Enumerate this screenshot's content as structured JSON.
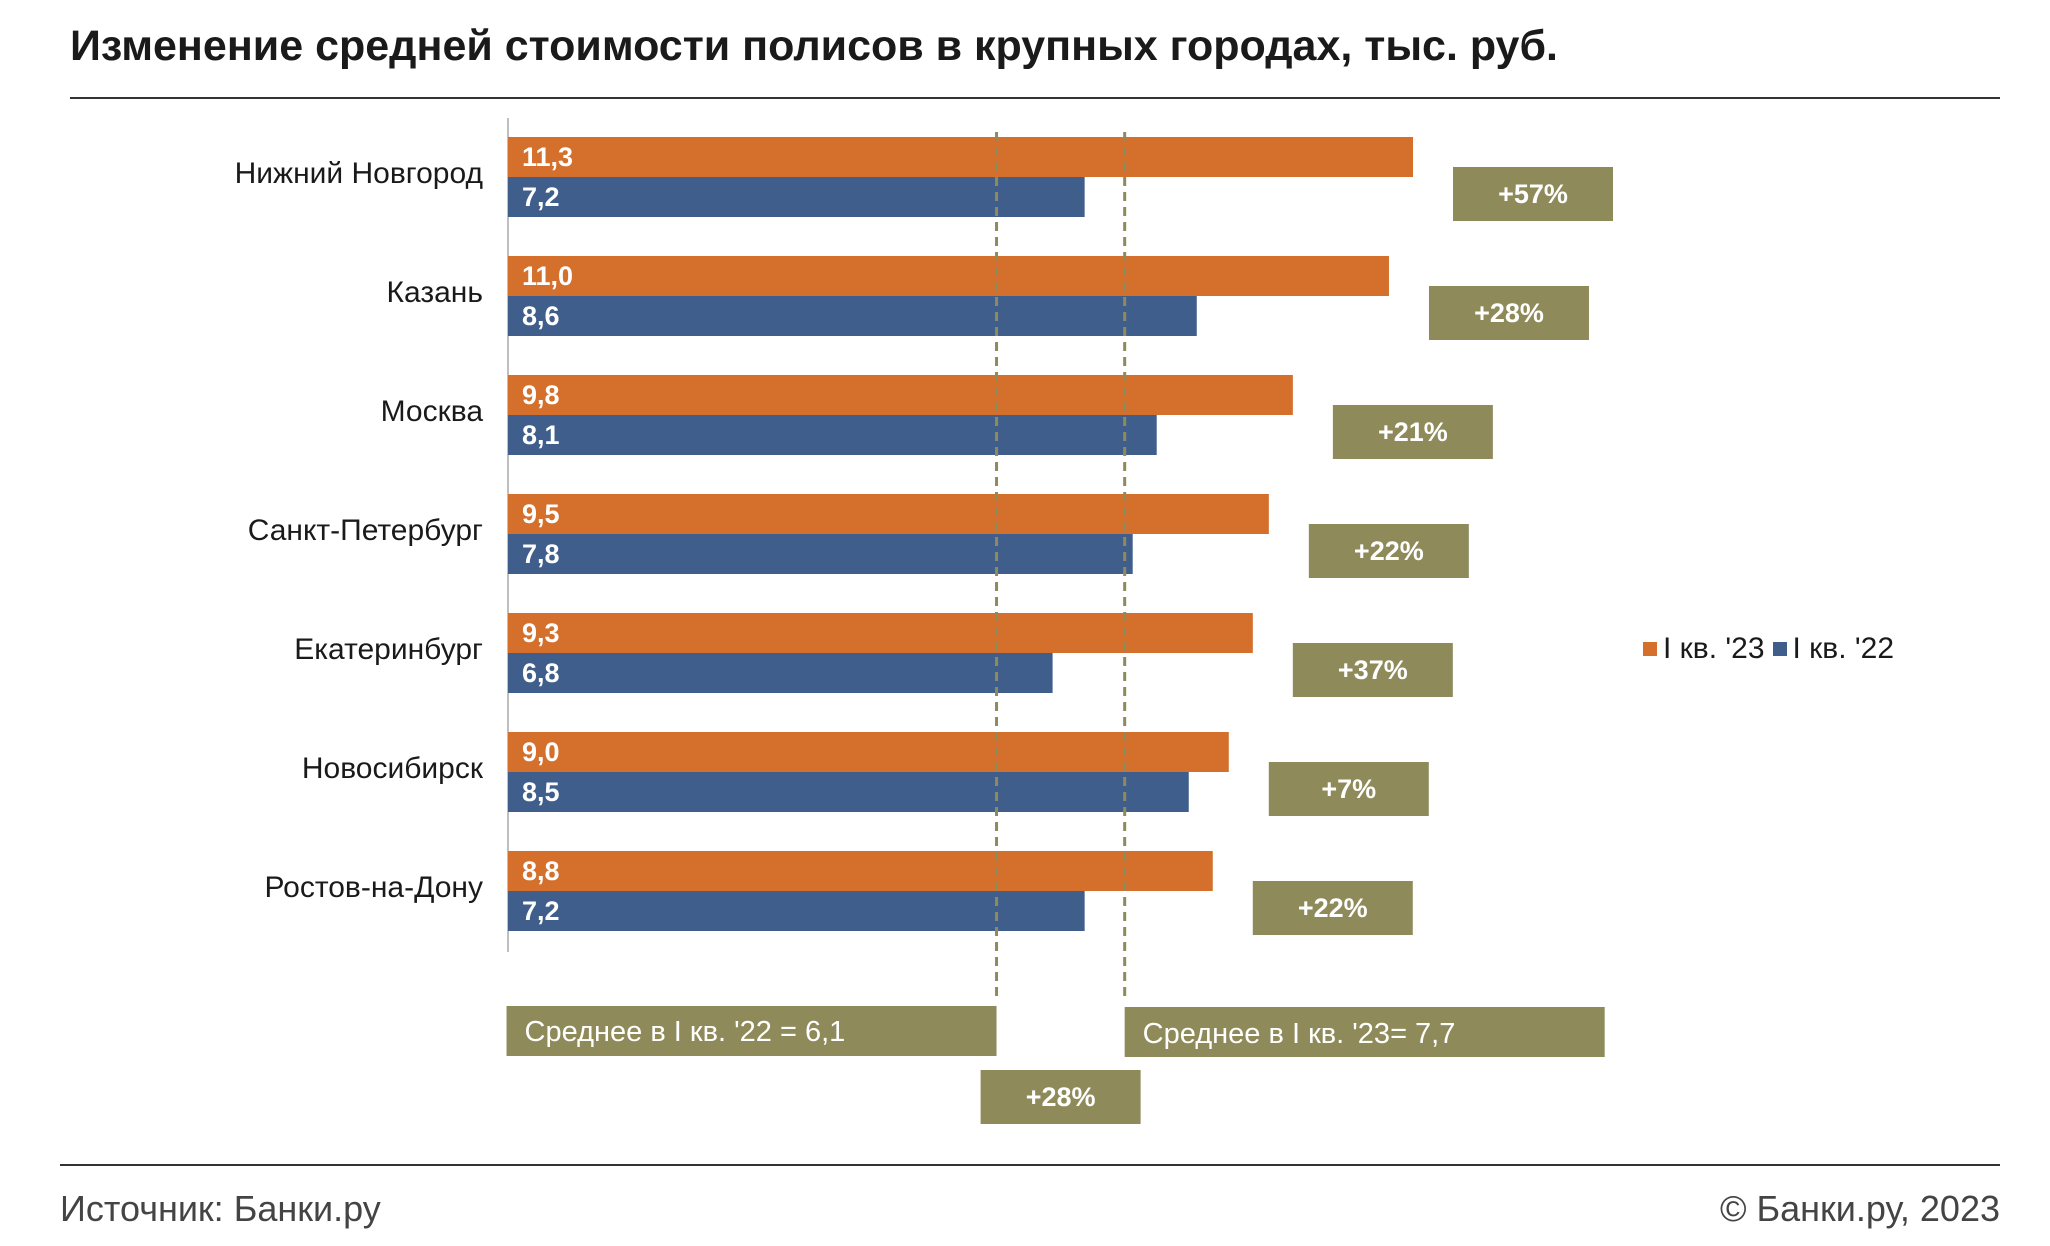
{
  "title": "Изменение средней стоимости полисов в крупных городах, тыс. руб.",
  "footer": {
    "source": "Источник: Банки.ру",
    "copyright": "© Банки.ру, 2023"
  },
  "colors": {
    "series_2023": "#d4702c",
    "series_2022": "#3f5e8c",
    "badge": "#8f8a5a",
    "badge_text": "#ffffff",
    "axis": "#bfbfbf",
    "text": "#1a1a1a"
  },
  "chart_data": {
    "type": "bar",
    "orientation": "horizontal",
    "categories": [
      "Нижний Новгород",
      "Казань",
      "Москва",
      "Санкт-Петербург",
      "Екатеринбург",
      "Новосибирск",
      "Ростов-на-Дону"
    ],
    "series": [
      {
        "name": "I кв. '23",
        "values": [
          11.3,
          11.0,
          9.8,
          9.5,
          9.3,
          9.0,
          8.8
        ],
        "labels": [
          "11,3",
          "11,0",
          "9,8",
          "9,5",
          "9,3",
          "9,0",
          "8,8"
        ]
      },
      {
        "name": "I кв. '22",
        "values": [
          7.2,
          8.6,
          8.1,
          7.8,
          6.8,
          8.5,
          7.2
        ],
        "labels": [
          "7,2",
          "8,6",
          "8,1",
          "7,8",
          "6,8",
          "8,5",
          "7,2"
        ]
      }
    ],
    "change_labels": [
      "+57%",
      "+28%",
      "+21%",
      "+22%",
      "+37%",
      "+7%",
      "+22%"
    ],
    "xlim": [
      0,
      11.3
    ],
    "grid": false,
    "legend_position": "right",
    "reference_lines": [
      {
        "value": 6.1,
        "label": "Среднее в I кв. '22 = 6,1"
      },
      {
        "value": 7.7,
        "label": "Среднее в I кв. '23= 7,7"
      }
    ],
    "average_change_label": "+28%"
  }
}
